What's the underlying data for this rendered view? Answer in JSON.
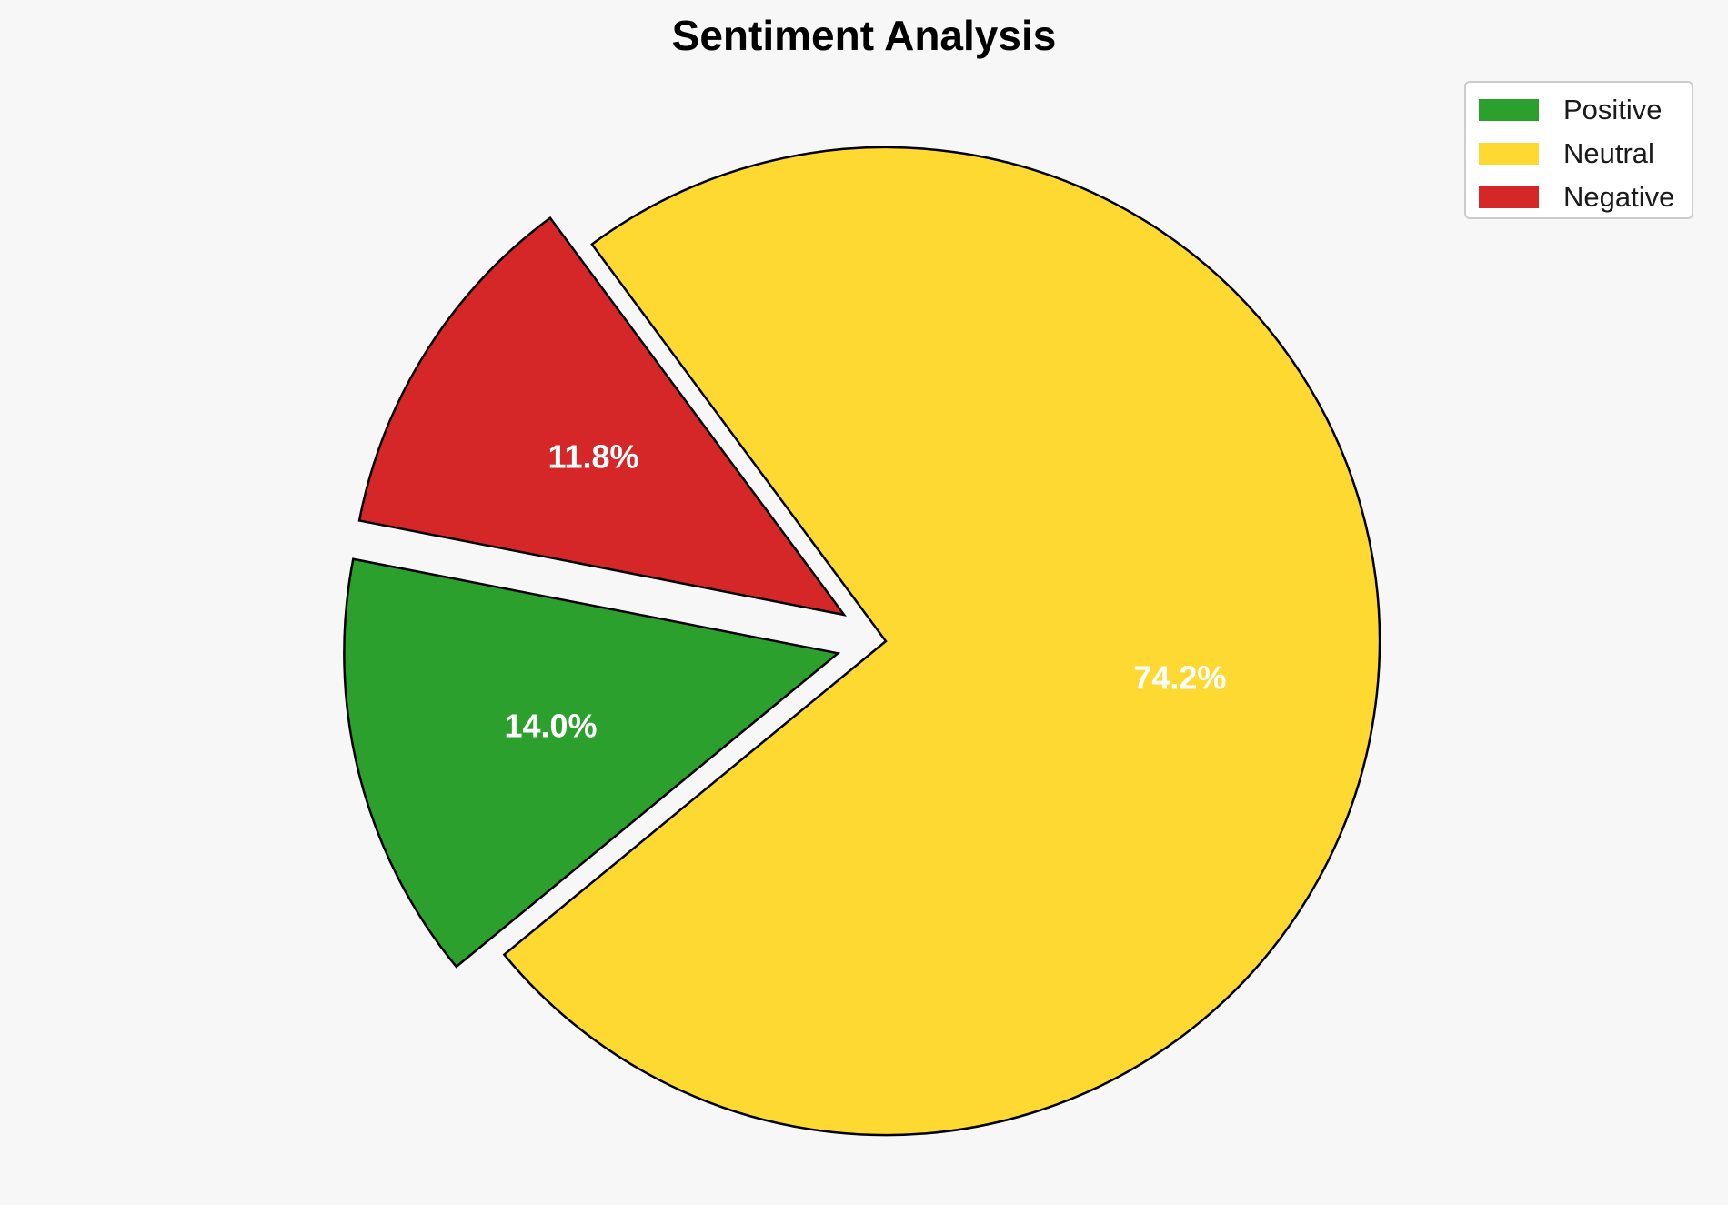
{
  "chart_data": {
    "type": "pie",
    "title": "Sentiment Analysis",
    "categories": [
      "Positive",
      "Neutral",
      "Negative"
    ],
    "values": [
      14.0,
      74.2,
      11.8
    ],
    "value_labels": [
      "14.0%",
      "74.2%",
      "11.8%"
    ],
    "colors": [
      "#2ca02c",
      "#fdd931",
      "#d62728"
    ],
    "explode": [
      0.1,
      0,
      0.1
    ],
    "start_angle_deg": 169,
    "direction": "counterclockwise",
    "legend": {
      "position": "top-right",
      "items": [
        {
          "label": "Positive",
          "color": "#2ca02c"
        },
        {
          "label": "Neutral",
          "color": "#fdd931"
        },
        {
          "label": "Negative",
          "color": "#d62728"
        }
      ]
    },
    "edge_color": "#000000",
    "label_color": "#ffffff"
  }
}
